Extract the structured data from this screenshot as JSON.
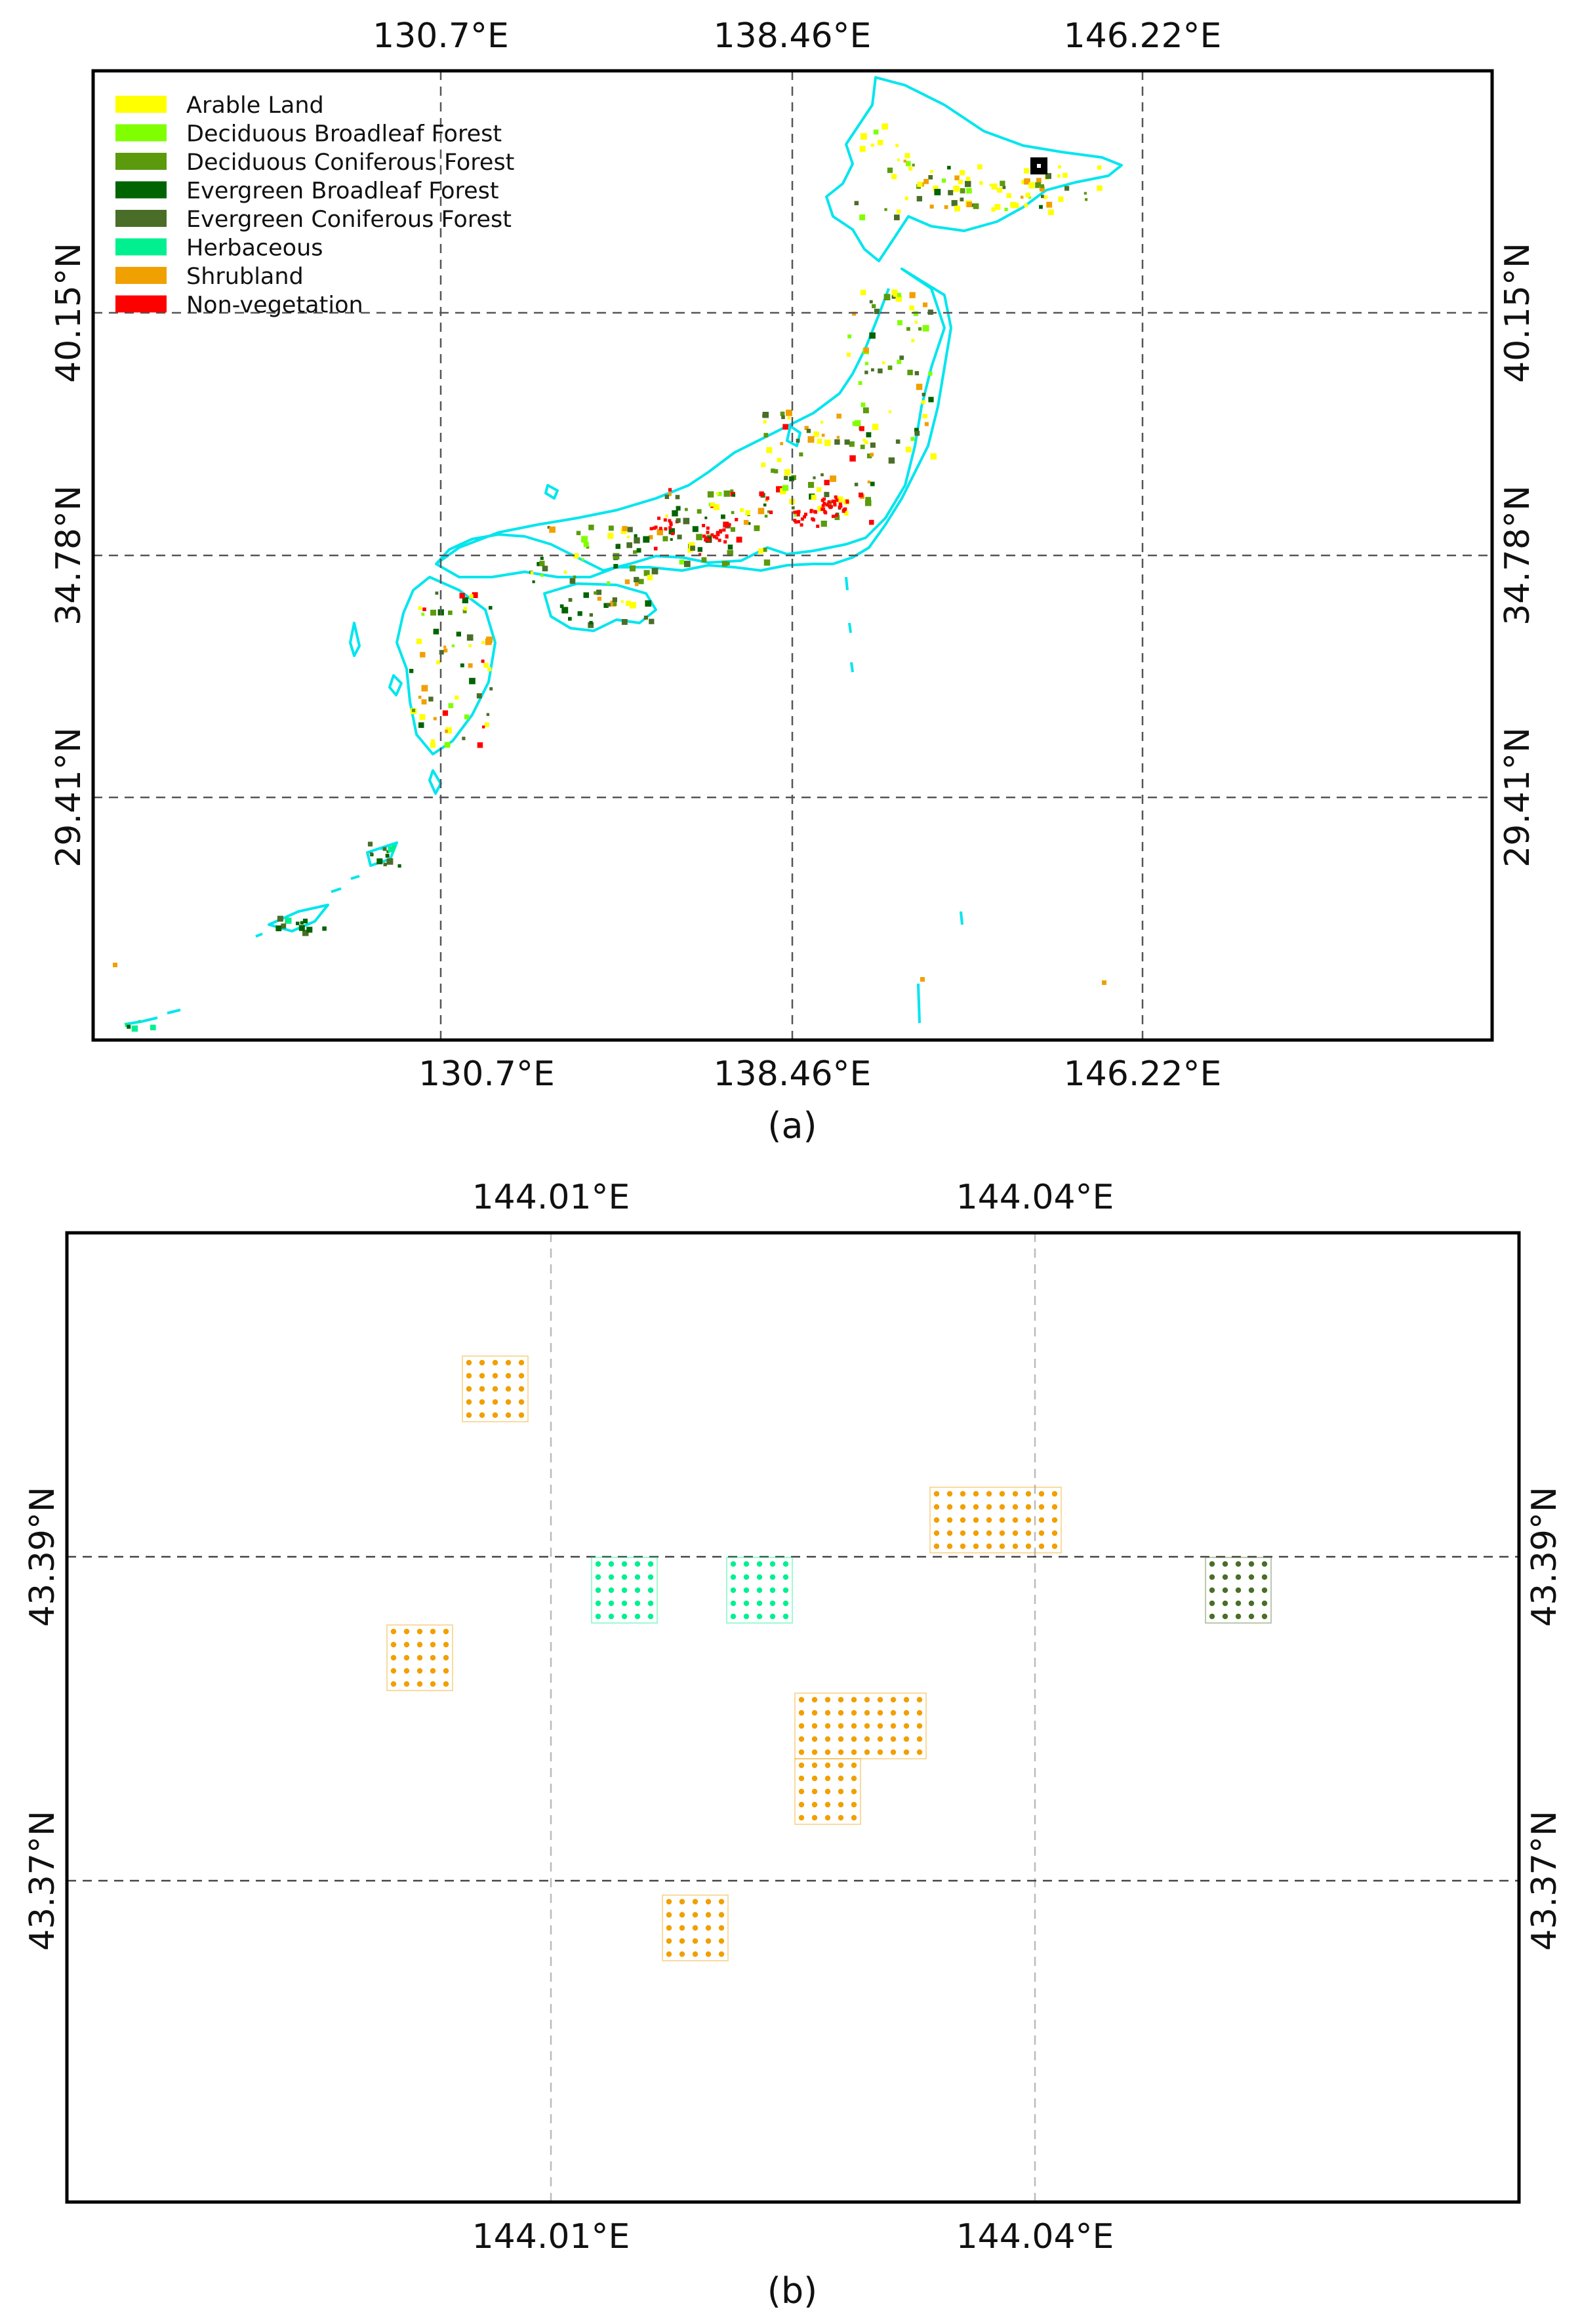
{
  "panel_a": {
    "caption": "(a)",
    "lon_ticks": [
      "130.7°E",
      "138.46°E",
      "146.22°E"
    ],
    "lat_ticks": [
      "40.15°N",
      "34.78°N",
      "29.41°N"
    ],
    "legend": [
      {
        "label": "Arable Land",
        "color": "#ffff00"
      },
      {
        "label": "Deciduous Broadleaf Forest",
        "color": "#7fff00"
      },
      {
        "label": "Deciduous Coniferous Forest",
        "color": "#5a9a0c"
      },
      {
        "label": "Evergreen Broadleaf Forest",
        "color": "#006400"
      },
      {
        "label": "Evergreen Coniferous Forest",
        "color": "#4a6e28"
      },
      {
        "label": "Herbaceous",
        "color": "#00f090"
      },
      {
        "label": "Shrubland",
        "color": "#f0a000"
      },
      {
        "label": "Non-vegetation",
        "color": "#ff0000"
      }
    ],
    "coastline_color": "#00e5ee"
  },
  "panel_b": {
    "caption": "(b)",
    "lon_ticks": [
      "144.01°E",
      "144.04°E"
    ],
    "lat_ticks": [
      "43.39°N",
      "43.37°N"
    ],
    "patches": [
      {
        "class": "Shrubland",
        "color": "#f0a000"
      },
      {
        "class": "Shrubland",
        "color": "#f0a000"
      },
      {
        "class": "Herbaceous",
        "color": "#00f090"
      },
      {
        "class": "Herbaceous",
        "color": "#00f090"
      },
      {
        "class": "Shrubland",
        "color": "#f0a000"
      },
      {
        "class": "Evergreen Coniferous Forest",
        "color": "#4a6e28"
      },
      {
        "class": "Shrubland",
        "color": "#f0a000"
      },
      {
        "class": "Shrubland",
        "color": "#f0a000"
      },
      {
        "class": "Shrubland",
        "color": "#f0a000"
      }
    ]
  }
}
